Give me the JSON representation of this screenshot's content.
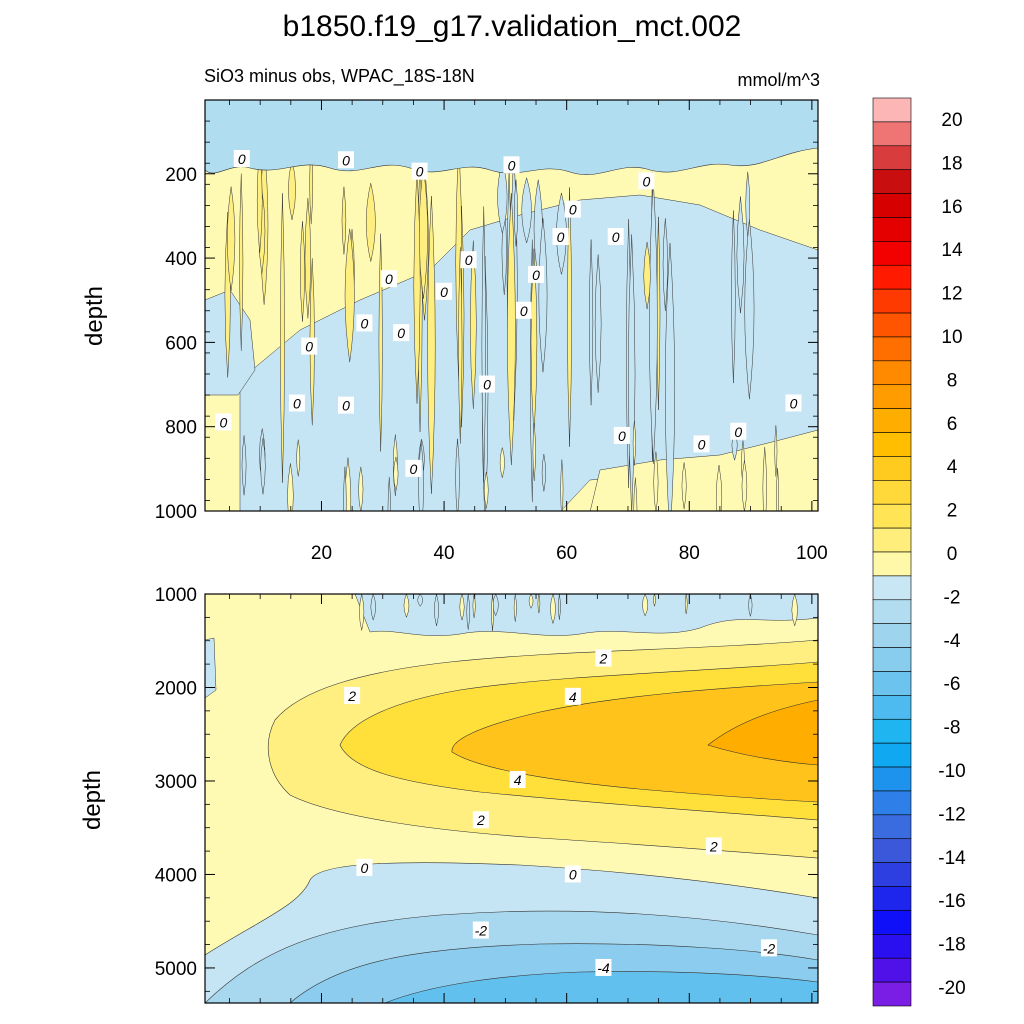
{
  "title": "b1850.f19_g17.validation_mct.002",
  "subtitle_left": "SiO3 minus obs, WPAC_18S-18N",
  "subtitle_right": "mmol/m^3",
  "chart_data": [
    {
      "panel": "upper",
      "type": "contour",
      "ylabel": "depth",
      "xlabel": "",
      "xlim": [
        1,
        101
      ],
      "ylim": [
        1000,
        25
      ],
      "xticks": [
        20,
        40,
        60,
        80,
        100
      ],
      "xtick_labels": [
        "20",
        "40",
        "60",
        "80",
        "100"
      ],
      "yticks": [
        200,
        400,
        600,
        800,
        1000
      ],
      "ytick_labels": [
        "200",
        "400",
        "600",
        "800",
        "1000"
      ],
      "contour_interval": 2,
      "contour_labels": [
        {
          "x": 7,
          "y": 165,
          "text": "0"
        },
        {
          "x": 24,
          "y": 168,
          "text": "0"
        },
        {
          "x": 36,
          "y": 195,
          "text": "0"
        },
        {
          "x": 51,
          "y": 180,
          "text": "0"
        },
        {
          "x": 73,
          "y": 218,
          "text": "0"
        },
        {
          "x": 61,
          "y": 285,
          "text": "0"
        },
        {
          "x": 59,
          "y": 350,
          "text": "0"
        },
        {
          "x": 68,
          "y": 350,
          "text": "0"
        },
        {
          "x": 44,
          "y": 405,
          "text": "0"
        },
        {
          "x": 31,
          "y": 450,
          "text": "0"
        },
        {
          "x": 55,
          "y": 440,
          "text": "0"
        },
        {
          "x": 40,
          "y": 480,
          "text": "0"
        },
        {
          "x": 53,
          "y": 525,
          "text": "0"
        },
        {
          "x": 27,
          "y": 555,
          "text": "0"
        },
        {
          "x": 33,
          "y": 578,
          "text": "0"
        },
        {
          "x": 18,
          "y": 610,
          "text": "0"
        },
        {
          "x": 47,
          "y": 700,
          "text": "0"
        },
        {
          "x": 16,
          "y": 745,
          "text": "0"
        },
        {
          "x": 24,
          "y": 750,
          "text": "0"
        },
        {
          "x": 4,
          "y": 790,
          "text": "0"
        },
        {
          "x": 97,
          "y": 745,
          "text": "0"
        },
        {
          "x": 69,
          "y": 822,
          "text": "0"
        },
        {
          "x": 82,
          "y": 842,
          "text": "0"
        },
        {
          "x": 88,
          "y": 812,
          "text": "0"
        },
        {
          "x": 35,
          "y": 900,
          "text": "0"
        }
      ]
    },
    {
      "panel": "lower",
      "type": "contour",
      "ylabel": "depth",
      "xlabel": "",
      "xlim": [
        1,
        101
      ],
      "ylim": [
        5375,
        1000
      ],
      "yticks": [
        1000,
        2000,
        3000,
        4000,
        5000
      ],
      "ytick_labels": [
        "1000",
        "2000",
        "3000",
        "4000",
        "5000"
      ],
      "contour_interval": 2,
      "contour_labels": [
        {
          "x": 66,
          "y": 1690,
          "text": "2"
        },
        {
          "x": 25,
          "y": 2090,
          "text": "2"
        },
        {
          "x": 61,
          "y": 2100,
          "text": "4"
        },
        {
          "x": 52,
          "y": 2990,
          "text": "4"
        },
        {
          "x": 46,
          "y": 3420,
          "text": "2"
        },
        {
          "x": 84,
          "y": 3700,
          "text": "2"
        },
        {
          "x": 27,
          "y": 3930,
          "text": "0"
        },
        {
          "x": 61,
          "y": 4000,
          "text": "0"
        },
        {
          "x": 46,
          "y": 4600,
          "text": "-2"
        },
        {
          "x": 93,
          "y": 4790,
          "text": "-2"
        },
        {
          "x": 66,
          "y": 5000,
          "text": "-4"
        }
      ]
    }
  ],
  "colorbar": {
    "levels": [
      "20",
      "18",
      "16",
      "14",
      "12",
      "10",
      "8",
      "6",
      "4",
      "2",
      "0",
      "-2",
      "-4",
      "-6",
      "-8",
      "-10",
      "-12",
      "-14",
      "-16",
      "-18",
      "-20"
    ],
    "colors": [
      "#FDB6B6",
      "#EF7575",
      "#D93C3C",
      "#C80E0E",
      "#D60000",
      "#E50000",
      "#F30000",
      "#FF1A00",
      "#FF3A00",
      "#FF5500",
      "#FF6F00",
      "#FF8A00",
      "#FF9D00",
      "#FFAE00",
      "#FFBF00",
      "#FFCB1E",
      "#FFD83A",
      "#FFE455",
      "#FFEE7C",
      "#FFF8A8",
      "#C8E6F4",
      "#B2DDF0",
      "#9ED4EE",
      "#88CCEE",
      "#6CC3EE",
      "#4DBBEF",
      "#1EB5F0",
      "#10A8F0",
      "#1E93EE",
      "#2E80E8",
      "#3A6CE0",
      "#3C58DA",
      "#2E3FE2",
      "#1E26EE",
      "#1010F8",
      "#2A10EE",
      "#5010E8",
      "#7A1EE6"
    ]
  },
  "fill_colors": {
    "upper_bg": "#FEFAB4",
    "upper_neg": "#C6E5F4",
    "upper_surface": "#B1DDF1",
    "upper_pos": "#FFEE80",
    "lower_l0": "#FEFAB4",
    "lower_l2": "#FFEE80",
    "lower_l4": "#FFE03A",
    "lower_l6": "#FFC31B",
    "lower_l8": "#FFAE00",
    "lower_n0": "#C6E5F4",
    "lower_n2": "#A8D8EF",
    "lower_n4": "#8CCCEE",
    "lower_n6": "#62C0EF"
  }
}
